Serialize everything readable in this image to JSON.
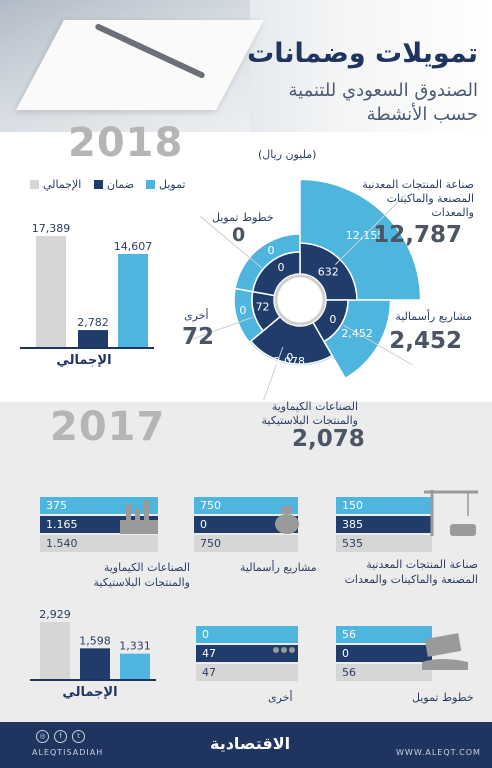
{
  "header": {
    "title": "تمويلات وضمانات",
    "subtitle1": "الصندوق السعودي للتنمية",
    "subtitle2": "حسب الأنشطة"
  },
  "colors": {
    "funding": "#4db5de",
    "guarantee": "#1f3c6a",
    "total": "#d6d6d6",
    "navy": "#1f3560"
  },
  "unit_label": "(مليون ريال)",
  "legend": {
    "funding": "تمويل",
    "guarantee": "ضمان",
    "total": "الإجمالي"
  },
  "total_label": "الإجمالي",
  "y2018": {
    "year": "2018",
    "activities": [
      {
        "name": "صناعة المنتجات المعدنية المصنعة والماكينات والمعدات",
        "total": "12,787",
        "funding": "12,155",
        "guarantee": "632"
      },
      {
        "name": "مشاريع رأسمالية",
        "total": "2,452",
        "funding": "2,452",
        "guarantee": "0"
      },
      {
        "name": "الصناعات الكيماوية والمنتجات البلاستيكية",
        "total": "2,078",
        "funding": "0",
        "guarantee": "2,078"
      },
      {
        "name": "أخرى",
        "total": "72",
        "funding": "0",
        "guarantee": "72"
      },
      {
        "name": "خطوط تمويل",
        "total": "0",
        "funding": "0",
        "guarantee": "0"
      }
    ],
    "totals": {
      "total": "17,389",
      "guarantee": "2,782",
      "funding": "14,607"
    }
  },
  "y2017": {
    "year": "2017",
    "activities": [
      {
        "name": "صناعة المنتجات المعدنية المصنعة والماكينات والمعدات",
        "funding": "150",
        "guarantee": "385",
        "total": "535"
      },
      {
        "name": "مشاريع رأسمالية",
        "funding": "750",
        "guarantee": "0",
        "total": "750"
      },
      {
        "name": "الصناعات الكيماوية والمنتجات البلاستيكية",
        "funding": "375",
        "guarantee": "1.165",
        "total": "1.540"
      },
      {
        "name": "خطوط تمويل",
        "funding": "56",
        "guarantee": "0",
        "total": "56"
      },
      {
        "name": "أخرى",
        "funding": "0",
        "guarantee": "47",
        "total": "47"
      }
    ],
    "totals": {
      "total": "2,929",
      "guarantee": "1,598",
      "funding": "1,331"
    }
  },
  "chart_data": [
    {
      "type": "pie",
      "title": "2018",
      "categories": [
        "صناعة المنتجات المعدنية المصنعة والماكينات والمعدات",
        "مشاريع رأسمالية",
        "الصناعات الكيماوية والمنتجات البلاستيكية",
        "أخرى",
        "خطوط تمويل"
      ],
      "series": [
        {
          "name": "تمويل",
          "values": [
            12155,
            2452,
            0,
            0,
            0
          ]
        },
        {
          "name": "ضمان",
          "values": [
            632,
            0,
            2078,
            72,
            0
          ]
        }
      ],
      "totals": [
        12787,
        2452,
        2078,
        72,
        0
      ]
    },
    {
      "type": "bar",
      "title": "2018",
      "categories": [
        "الإجمالي",
        "ضمان",
        "تمويل"
      ],
      "values": [
        17389,
        2782,
        14607
      ],
      "xlabel": "الإجمالي",
      "ylim": [
        0,
        17389
      ]
    },
    {
      "type": "bar",
      "title": "2017",
      "categories": [
        "الإجمالي",
        "ضمان",
        "تمويل"
      ],
      "values": [
        2929,
        1598,
        1331
      ],
      "xlabel": "الإجمالي",
      "ylim": [
        0,
        2929
      ]
    }
  ],
  "footer": {
    "handle": "ALEQTISADIAH",
    "logo": "الاقتصادية",
    "url": "WWW.ALEQT.COM"
  }
}
